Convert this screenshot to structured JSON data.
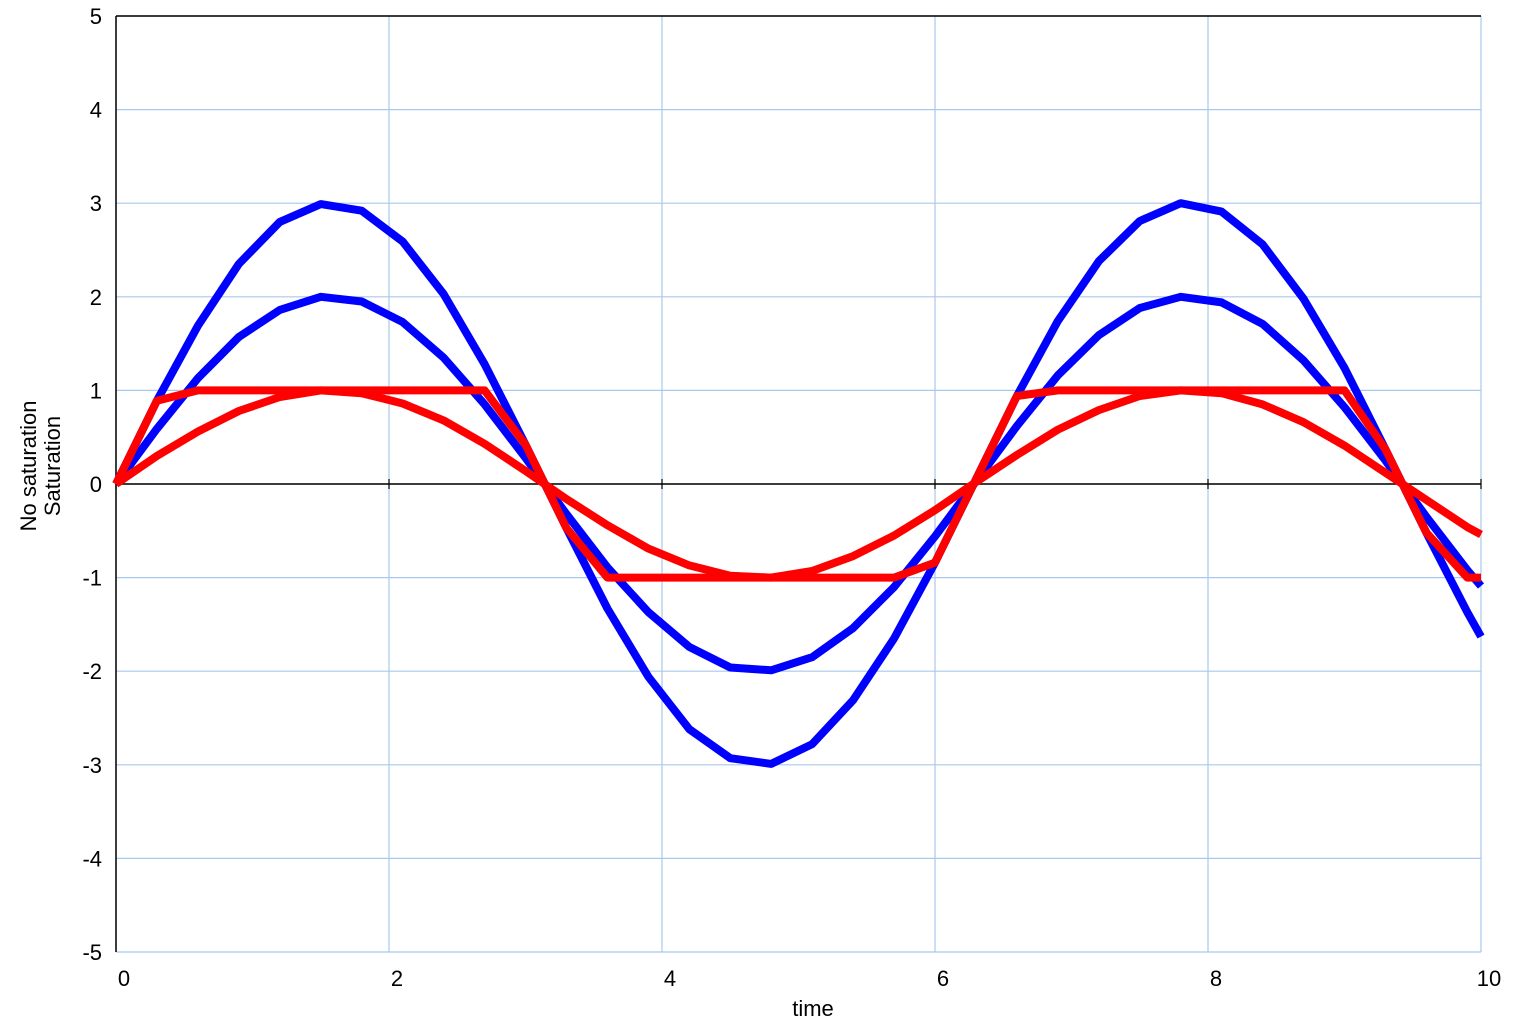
{
  "chart_data": {
    "type": "line",
    "xlabel": "time",
    "ylabel_lines": [
      "No saturation",
      "Saturation"
    ],
    "xlim": [
      0,
      10
    ],
    "ylim": [
      -5,
      5
    ],
    "x_ticks": [
      "0",
      "2",
      "4",
      "6",
      "8",
      "10"
    ],
    "y_ticks": [
      "5",
      "4",
      "3",
      "2",
      "1",
      "0",
      "-1",
      "-2",
      "-3",
      "-4",
      "-5"
    ],
    "grid": true,
    "x": [
      0,
      0.3,
      0.6,
      0.9,
      1.2,
      1.5,
      1.8,
      2.1,
      2.4,
      2.7,
      3.0,
      3.3,
      3.6,
      3.9,
      4.2,
      4.5,
      4.8,
      5.1,
      5.4,
      5.7,
      6.0,
      6.3,
      6.6,
      6.9,
      7.2,
      7.5,
      7.8,
      8.1,
      8.4,
      8.7,
      9.0,
      9.3,
      9.6,
      9.9,
      10
    ],
    "series": [
      {
        "color": "#0000ff",
        "values": [
          0,
          0.89,
          1.69,
          2.35,
          2.8,
          2.99,
          2.92,
          2.59,
          2.03,
          1.28,
          0.42,
          -0.47,
          -1.33,
          -2.06,
          -2.62,
          -2.93,
          -2.99,
          -2.78,
          -2.31,
          -1.65,
          -0.84,
          0.05,
          0.94,
          1.74,
          2.38,
          2.81,
          3.0,
          2.91,
          2.56,
          1.98,
          1.24,
          0.37,
          -0.52,
          -1.37,
          -1.63
        ]
      },
      {
        "color": "#0000ff",
        "values": [
          0,
          0.59,
          1.13,
          1.57,
          1.86,
          2.0,
          1.95,
          1.73,
          1.35,
          0.85,
          0.28,
          -0.32,
          -0.89,
          -1.37,
          -1.74,
          -1.96,
          -1.99,
          -1.85,
          -1.54,
          -1.1,
          -0.56,
          0.03,
          0.62,
          1.16,
          1.59,
          1.88,
          2.0,
          1.94,
          1.71,
          1.32,
          0.82,
          0.25,
          -0.35,
          -0.92,
          -1.09
        ]
      },
      {
        "color": "#ff0000",
        "values": [
          0,
          0.89,
          1.0,
          1.0,
          1.0,
          1.0,
          1.0,
          1.0,
          1.0,
          1.0,
          0.42,
          -0.47,
          -1.0,
          -1.0,
          -1.0,
          -1.0,
          -1.0,
          -1.0,
          -1.0,
          -1.0,
          -0.84,
          0.05,
          0.94,
          1.0,
          1.0,
          1.0,
          1.0,
          1.0,
          1.0,
          1.0,
          1.0,
          0.37,
          -0.52,
          -1.0,
          -1.0
        ]
      },
      {
        "color": "#ff0000",
        "values": [
          0,
          0.3,
          0.56,
          0.78,
          0.93,
          1.0,
          0.97,
          0.86,
          0.68,
          0.43,
          0.14,
          -0.16,
          -0.44,
          -0.69,
          -0.87,
          -0.98,
          -1.0,
          -0.93,
          -0.77,
          -0.55,
          -0.28,
          0.02,
          0.31,
          0.58,
          0.79,
          0.94,
          1.0,
          0.97,
          0.85,
          0.66,
          0.41,
          0.12,
          -0.17,
          -0.46,
          -0.54
        ]
      }
    ]
  }
}
